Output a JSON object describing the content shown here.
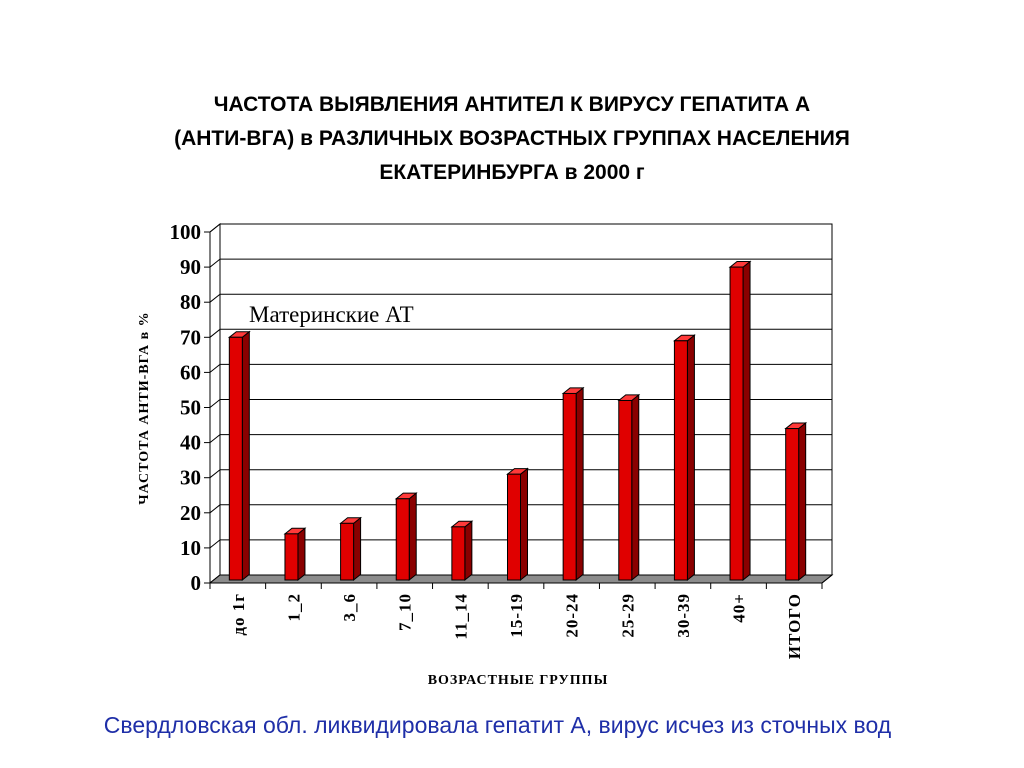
{
  "title_lines": [
    "ЧАСТОТА ВЫЯВЛЕНИЯ АНТИТЕЛ К ВИРУСУ ГЕПАТИТА А",
    "(АНТИ-ВГА) в РАЗЛИЧНЫХ ВОЗРАСТНЫХ ГРУППАХ НАСЕЛЕНИЯ",
    "ЕКАТЕРИНБУРГА в 2000 г"
  ],
  "footer_text": "Свердловская обл. ликвидировала гепатит А, вирус исчез из сточных вод",
  "colors": {
    "bar_front": "#e00000",
    "bar_side": "#8a0000",
    "bar_top": "#ff3a3a",
    "floor": "#8c8c8c",
    "footer_text": "#1f2fa8"
  },
  "chart_data": {
    "type": "bar",
    "title": "ЧАСТОТА ВЫЯВЛЕНИЯ АНТИТЕЛ К ВИРУСУ ГЕПАТИТА А (АНТИ-ВГА) в РАЗЛИЧНЫХ ВОЗРАСТНЫХ ГРУППАХ НАСЕЛЕНИЯ ЕКАТЕРИНБУРГА в 2000 г",
    "xlabel": "ВОЗРАСТНЫЕ ГРУППЫ",
    "ylabel": "ЧАСТОТА АНТИ-ВГА в %",
    "categories": [
      "до 1г",
      "1_2",
      "3_6",
      "7_10",
      "11_14",
      "15-19",
      "20-24",
      "25-29",
      "30-39",
      "40+",
      "ИТОГО"
    ],
    "values": [
      70,
      14,
      17,
      24,
      16,
      31,
      54,
      52,
      69,
      90,
      44
    ],
    "ylim": [
      0,
      100
    ],
    "yticks": [
      0,
      10,
      20,
      30,
      40,
      50,
      60,
      70,
      80,
      90,
      100
    ],
    "grid": true,
    "legend": false,
    "bar_style": "3d",
    "annotations": [
      {
        "text": "Материнские АТ",
        "near_category": "до 1г"
      }
    ]
  }
}
